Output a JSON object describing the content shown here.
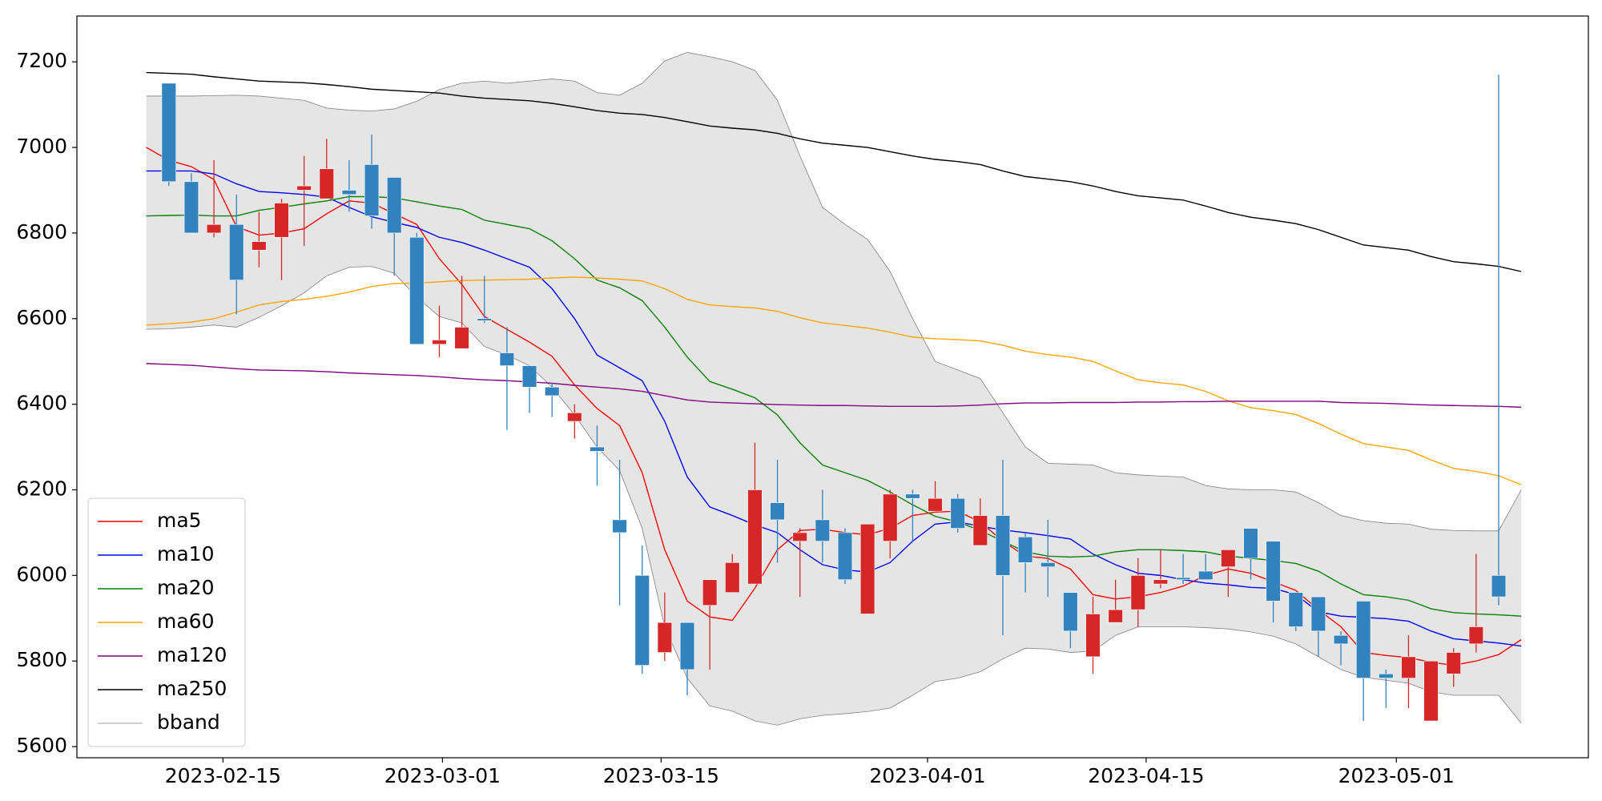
{
  "chart_data": {
    "type": "candlestick",
    "x": [
      0,
      1,
      2,
      3,
      4,
      5,
      6,
      7,
      8,
      9,
      10,
      11,
      12,
      13,
      14,
      15,
      16,
      17,
      18,
      19,
      20,
      21,
      22,
      23,
      24,
      25,
      26,
      27,
      28,
      29,
      30,
      31,
      32,
      33,
      34,
      35,
      36,
      37,
      38,
      39,
      40,
      41,
      42,
      43,
      44,
      45,
      46,
      47,
      48,
      49,
      50,
      51,
      52,
      53,
      54,
      55,
      56,
      57,
      58,
      59,
      60,
      61
    ],
    "xlim": [
      -3.08,
      63.98
    ],
    "xticks": [
      {
        "value": 3.4,
        "label": "2023-02-15"
      },
      {
        "value": 13.14,
        "label": "2023-03-01"
      },
      {
        "value": 22.84,
        "label": "2023-03-15"
      },
      {
        "value": 34.66,
        "label": "2023-04-01"
      },
      {
        "value": 44.36,
        "label": "2023-04-15"
      },
      {
        "value": 55.46,
        "label": "2023-05-01"
      }
    ],
    "ylim": [
      5574,
      7307
    ],
    "yticks": [
      5600,
      5800,
      6000,
      6200,
      6400,
      6600,
      6800,
      7000,
      7200
    ],
    "grid": false,
    "legend": "lower left",
    "candles": {
      "up_color": "#d62728",
      "down_color": "#3182bd",
      "open": [
        null,
        7150,
        6920,
        6800,
        6820,
        6760,
        6790,
        6900,
        6880,
        6900,
        6960,
        6930,
        6790,
        6540,
        6530,
        6600,
        6520,
        6490,
        6440,
        6360,
        6300,
        6130,
        6000,
        5820,
        5890,
        5930,
        5960,
        5980,
        6170,
        6080,
        6130,
        6100,
        5910,
        6080,
        6190,
        6150,
        6180,
        6070,
        6140,
        6090,
        6030,
        5960,
        5810,
        5890,
        5920,
        5980,
        5995,
        6010,
        6020,
        6110,
        6080,
        5960,
        5950,
        5860,
        5940,
        5770,
        5760,
        5660,
        5770,
        5840,
        6000,
        null
      ],
      "high": [
        null,
        7150,
        6940,
        6970,
        6890,
        6850,
        6880,
        6980,
        7020,
        6970,
        7030,
        6930,
        6800,
        6630,
        6700,
        6700,
        6580,
        6490,
        6450,
        6400,
        6350,
        6270,
        6070,
        5960,
        5890,
        5990,
        6050,
        6310,
        6270,
        6110,
        6200,
        6110,
        6120,
        6200,
        6200,
        6220,
        6190,
        6180,
        6270,
        6100,
        6130,
        5960,
        5950,
        5990,
        6040,
        6060,
        6050,
        6050,
        6060,
        6110,
        6080,
        5960,
        5950,
        5870,
        5940,
        5780,
        5860,
        5800,
        5830,
        6050,
        7170,
        null
      ],
      "low": [
        null,
        6910,
        6800,
        6790,
        6610,
        6720,
        6690,
        6770,
        6880,
        6850,
        6810,
        6700,
        6540,
        6510,
        6530,
        6590,
        6340,
        6380,
        6370,
        6320,
        6210,
        5930,
        5770,
        5800,
        5720,
        5780,
        5960,
        5980,
        6030,
        5950,
        6030,
        5980,
        5910,
        6040,
        6080,
        6150,
        6100,
        6070,
        5860,
        5960,
        5950,
        5830,
        5770,
        5890,
        5880,
        5970,
        5980,
        5990,
        5950,
        5990,
        5890,
        5870,
        5810,
        5790,
        5660,
        5690,
        5690,
        5660,
        5740,
        5820,
        5930,
        null
      ],
      "close": [
        null,
        6920,
        6800,
        6820,
        6690,
        6780,
        6870,
        6910,
        6950,
        6890,
        6840,
        6800,
        6540,
        6550,
        6580,
        6595,
        6490,
        6440,
        6420,
        6380,
        6290,
        6100,
        5790,
        5890,
        5780,
        5990,
        6030,
        6200,
        6130,
        6100,
        6080,
        5990,
        6120,
        6190,
        6180,
        6180,
        6110,
        6140,
        6000,
        6030,
        6020,
        5870,
        5910,
        5920,
        6000,
        5990,
        5990,
        5990,
        6060,
        6040,
        5940,
        5880,
        5870,
        5840,
        5760,
        5760,
        5810,
        5800,
        5820,
        5880,
        5950,
        null
      ]
    },
    "series": [
      {
        "name": "ma5",
        "color": "red",
        "values": [
          7000,
          6970,
          6955,
          6925,
          6815,
          6795,
          6800,
          6810,
          6845,
          6875,
          6870,
          6845,
          6820,
          6740,
          6680,
          6605,
          6575,
          6545,
          6512,
          6445,
          6390,
          6350,
          6240,
          6060,
          5940,
          5903,
          5895,
          5970,
          6060,
          6105,
          6108,
          6100,
          6095,
          6110,
          6140,
          6148,
          6150,
          6125,
          6080,
          6045,
          6040,
          6015,
          5955,
          5945,
          5950,
          5960,
          5975,
          6000,
          6015,
          6005,
          5985,
          5965,
          5920,
          5880,
          5820,
          5813,
          5808,
          5797,
          5790,
          5800,
          5815,
          5850
        ]
      },
      {
        "name": "ma10",
        "color": "blue",
        "values": [
          6945,
          6945,
          6945,
          6938,
          6915,
          6897,
          6894,
          6890,
          6884,
          6860,
          6838,
          6825,
          6813,
          6790,
          6778,
          6760,
          6740,
          6720,
          6670,
          6600,
          6515,
          6485,
          6455,
          6360,
          6230,
          6160,
          6140,
          6118,
          6100,
          6060,
          6025,
          6013,
          6008,
          6030,
          6080,
          6120,
          6125,
          6115,
          6106,
          6100,
          6093,
          6085,
          6050,
          6025,
          6005,
          6000,
          5990,
          5982,
          5978,
          5972,
          5970,
          5955,
          5915,
          5905,
          5902,
          5899,
          5893,
          5870,
          5852,
          5847,
          5842,
          5835
        ]
      },
      {
        "name": "ma20",
        "color": "green",
        "values": [
          6840,
          6841,
          6842,
          6840,
          6840,
          6853,
          6860,
          6868,
          6875,
          6885,
          6885,
          6882,
          6873,
          6863,
          6855,
          6830,
          6820,
          6810,
          6782,
          6740,
          6690,
          6672,
          6642,
          6580,
          6510,
          6453,
          6435,
          6415,
          6375,
          6310,
          6258,
          6240,
          6222,
          6195,
          6165,
          6138,
          6125,
          6105,
          6080,
          6055,
          6045,
          6043,
          6045,
          6055,
          6060,
          6060,
          6058,
          6055,
          6045,
          6040,
          6035,
          6028,
          6010,
          5980,
          5955,
          5950,
          5942,
          5922,
          5913,
          5910,
          5908,
          5905
        ]
      },
      {
        "name": "ma60",
        "color": "orange",
        "values": [
          6585,
          6588,
          6592,
          6600,
          6615,
          6632,
          6640,
          6645,
          6652,
          6662,
          6675,
          6682,
          6683,
          6686,
          6689,
          6690,
          6691,
          6692,
          6695,
          6697,
          6695,
          6692,
          6688,
          6670,
          6645,
          6632,
          6628,
          6625,
          6617,
          6602,
          6590,
          6584,
          6578,
          6568,
          6557,
          6553,
          6551,
          6548,
          6538,
          6524,
          6516,
          6510,
          6500,
          6478,
          6457,
          6450,
          6445,
          6430,
          6408,
          6392,
          6385,
          6376,
          6355,
          6330,
          6308,
          6300,
          6292,
          6270,
          6250,
          6243,
          6233,
          6212
        ]
      },
      {
        "name": "ma120",
        "color": "purple",
        "values": [
          6495,
          6493,
          6491,
          6487,
          6483,
          6480,
          6479,
          6478,
          6476,
          6473,
          6471,
          6469,
          6467,
          6464,
          6460,
          6457,
          6455,
          6452,
          6449,
          6444,
          6440,
          6436,
          6430,
          6420,
          6410,
          6405,
          6403,
          6401,
          6399,
          6398,
          6397,
          6397,
          6396,
          6395,
          6395,
          6395,
          6396,
          6398,
          6401,
          6403,
          6403,
          6404,
          6404,
          6404,
          6405,
          6405,
          6406,
          6406,
          6407,
          6407,
          6407,
          6407,
          6407,
          6404,
          6403,
          6402,
          6400,
          6398,
          6397,
          6396,
          6395,
          6393
        ]
      },
      {
        "name": "ma250",
        "color": "black",
        "values": [
          7175,
          7173,
          7171,
          7165,
          7160,
          7155,
          7153,
          7151,
          7147,
          7142,
          7136,
          7133,
          7130,
          7127,
          7120,
          7115,
          7112,
          7109,
          7103,
          7095,
          7086,
          7080,
          7077,
          7070,
          7060,
          7050,
          7045,
          7041,
          7033,
          7020,
          7010,
          7005,
          7000,
          6990,
          6980,
          6972,
          6967,
          6960,
          6945,
          6932,
          6926,
          6920,
          6910,
          6897,
          6887,
          6882,
          6877,
          6863,
          6848,
          6837,
          6830,
          6822,
          6808,
          6790,
          6772,
          6766,
          6760,
          6745,
          6733,
          6728,
          6722,
          6710
        ]
      }
    ],
    "band": {
      "name": "bband",
      "color": "gray",
      "fill": "#e5e5e5",
      "upper": [
        7120,
        7120,
        7120,
        7121,
        7122,
        7120,
        7115,
        7110,
        7092,
        7087,
        7085,
        7090,
        7108,
        7135,
        7150,
        7155,
        7150,
        7155,
        7160,
        7155,
        7128,
        7122,
        7150,
        7202,
        7222,
        7212,
        7200,
        7180,
        7110,
        6980,
        6860,
        6820,
        6785,
        6710,
        6600,
        6500,
        6480,
        6460,
        6380,
        6300,
        6262,
        6260,
        6258,
        6240,
        6235,
        6232,
        6230,
        6210,
        6202,
        6200,
        6200,
        6195,
        6170,
        6140,
        6128,
        6122,
        6120,
        6108,
        6105,
        6104,
        6104,
        6200
      ],
      "lower": [
        6575,
        6576,
        6580,
        6585,
        6580,
        6603,
        6630,
        6660,
        6700,
        6720,
        6722,
        6706,
        6650,
        6605,
        6590,
        6535,
        6515,
        6490,
        6440,
        6375,
        6300,
        6245,
        6110,
        5880,
        5760,
        5695,
        5683,
        5660,
        5650,
        5665,
        5673,
        5677,
        5682,
        5690,
        5720,
        5752,
        5760,
        5775,
        5805,
        5830,
        5828,
        5820,
        5823,
        5860,
        5880,
        5880,
        5880,
        5878,
        5875,
        5868,
        5858,
        5840,
        5810,
        5780,
        5762,
        5755,
        5748,
        5728,
        5720,
        5720,
        5720,
        5655
      ]
    }
  }
}
